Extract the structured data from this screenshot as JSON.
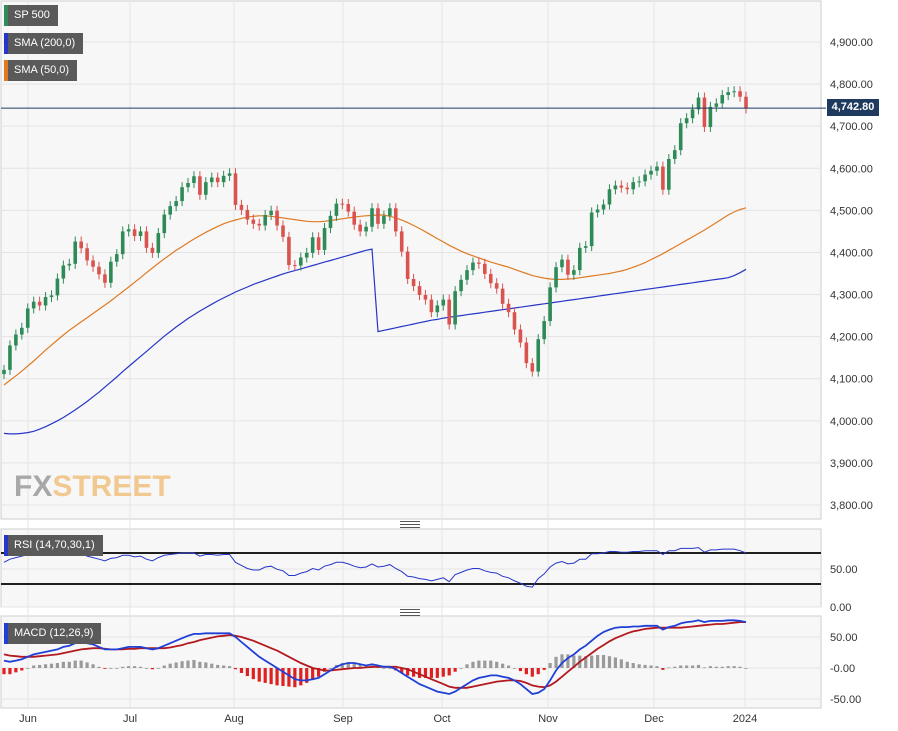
{
  "legend": {
    "sp500": "SP 500",
    "sma200": "SMA (200,0)",
    "sma50": "SMA (50,0)",
    "rsi": "RSI (14,70,30,1)",
    "macd": "MACD (12,26,9)"
  },
  "last_price_label": "4,742.80",
  "logo": {
    "part1": "FX",
    "part2": "STREET"
  },
  "colors": {
    "bull": "#2e8b57",
    "bear": "#d9534f",
    "sma200": "#2636c8",
    "sma50": "#e07a22",
    "rsi_line": "#2636c8",
    "macd_line": "#1f3fd6",
    "signal_line": "#b3191e",
    "hist_pos": "#9a9a9a",
    "hist_neg": "#e02020",
    "price_line": "#1f3a5f"
  },
  "chart_data": [
    {
      "type": "candlestick",
      "title": "SP 500",
      "x_ticks": [
        "Jun",
        "Jul",
        "Aug",
        "Sep",
        "Oct",
        "Nov",
        "Dec",
        "2024"
      ],
      "y_ticks": [
        "4,900.00",
        "4,800.00",
        "4,700.00",
        "4,600.00",
        "4,500.00",
        "4,400.00",
        "4,300.00",
        "4,200.00",
        "4,100.00",
        "4,000.00",
        "3,900.00",
        "3,800.00"
      ],
      "ylim": [
        3770,
        4960
      ],
      "last_price": 4742.8,
      "close": [
        4121,
        4179,
        4205,
        4221,
        4267,
        4283,
        4274,
        4294,
        4298,
        4338,
        4369,
        4373,
        4426,
        4410,
        4381,
        4366,
        4348,
        4328,
        4378,
        4396,
        4450,
        4455,
        4439,
        4450,
        4411,
        4399,
        4446,
        4490,
        4510,
        4522,
        4555,
        4565,
        4581,
        4537,
        4567,
        4578,
        4567,
        4582,
        4588,
        4513,
        4501,
        4478,
        4468,
        4464,
        4489,
        4499,
        4464,
        4437,
        4370,
        4369,
        4388,
        4399,
        4436,
        4406,
        4458,
        4487,
        4516,
        4515,
        4497,
        4466,
        4450,
        4461,
        4505,
        4468,
        4487,
        4505,
        4450,
        4402,
        4337,
        4320,
        4299,
        4288,
        4258,
        4274,
        4288,
        4229,
        4308,
        4335,
        4358,
        4376,
        4373,
        4349,
        4327,
        4314,
        4278,
        4258,
        4217,
        4186,
        4137,
        4117,
        4194,
        4237,
        4317,
        4365,
        4383,
        4347,
        4358,
        4411,
        4415,
        4495,
        4502,
        4514,
        4550,
        4559,
        4554,
        4550,
        4567,
        4569,
        4585,
        4594,
        4604,
        4549,
        4622,
        4643,
        4707,
        4719,
        4740,
        4768,
        4698,
        4746,
        4754,
        4774,
        4781,
        4783,
        4770,
        4742
      ],
      "sma200": [
        3970,
        3969,
        3969,
        3970,
        3972,
        3975,
        3980,
        3986,
        3993,
        4000,
        4008,
        4017,
        4026,
        4036,
        4046,
        4057,
        4068,
        4080,
        4092,
        4104,
        4117,
        4129,
        4141,
        4153,
        4165,
        4177,
        4189,
        4201,
        4212,
        4223,
        4233,
        4243,
        4252,
        4261,
        4269,
        4277,
        4285,
        4292,
        4299,
        4306,
        4312,
        4318,
        4324,
        4329,
        4334,
        4339,
        4344,
        4349,
        4353,
        4357,
        4361,
        4365,
        4369,
        4373,
        4377,
        4381,
        4385,
        4389,
        4393,
        4397,
        4401,
        4405,
        4408,
        4212,
        4215,
        4218,
        4221,
        4224,
        4227,
        4230,
        4233,
        4236,
        4239,
        4241,
        4244,
        4246,
        4248,
        4250,
        4252,
        4254,
        4256,
        4258,
        4260,
        4262,
        4264,
        4266,
        4268,
        4270,
        4272,
        4274,
        4276,
        4278,
        4280,
        4282,
        4284,
        4286,
        4288,
        4290,
        4292,
        4294,
        4296,
        4298,
        4300,
        4302,
        4304,
        4306,
        4308,
        4310,
        4312,
        4314,
        4316,
        4318,
        4320,
        4322,
        4324,
        4326,
        4328,
        4330,
        4332,
        4334,
        4336,
        4338,
        4340,
        4345,
        4352,
        4360
      ],
      "sma50": [
        4085,
        4096,
        4107,
        4118,
        4130,
        4142,
        4155,
        4168,
        4180,
        4192,
        4204,
        4215,
        4225,
        4235,
        4245,
        4255,
        4265,
        4275,
        4285,
        4296,
        4307,
        4318,
        4329,
        4340,
        4352,
        4363,
        4374,
        4385,
        4395,
        4405,
        4414,
        4423,
        4432,
        4440,
        4448,
        4455,
        4462,
        4468,
        4473,
        4477,
        4481,
        4484,
        4486,
        4487,
        4487,
        4486,
        4484,
        4482,
        4480,
        4478,
        4476,
        4474,
        4473,
        4473,
        4474,
        4476,
        4478,
        4480,
        4482,
        4484,
        4486,
        4487,
        4488,
        4489,
        4489,
        4486,
        4482,
        4477,
        4471,
        4464,
        4457,
        4449,
        4441,
        4433,
        4425,
        4417,
        4410,
        4403,
        4397,
        4392,
        4387,
        4382,
        4377,
        4373,
        4369,
        4365,
        4360,
        4355,
        4350,
        4345,
        4342,
        4339,
        4337,
        4336,
        4336,
        4337,
        4338,
        4340,
        4342,
        4344,
        4346,
        4348,
        4350,
        4353,
        4356,
        4360,
        4365,
        4370,
        4376,
        4383,
        4390,
        4397,
        4405,
        4413,
        4421,
        4429,
        4437,
        4445,
        4453,
        4462,
        4471,
        4480,
        4489,
        4496,
        4502,
        4506
      ]
    },
    {
      "type": "line",
      "title": "RSI (14,70,30,1)",
      "y_ticks": [
        "50.00",
        "0.00"
      ],
      "levels": [
        70,
        30
      ],
      "ylim": [
        0,
        100
      ],
      "values": [
        58,
        62,
        64,
        66,
        68,
        69,
        68,
        68,
        68,
        70,
        70,
        70,
        72,
        70,
        66,
        64,
        62,
        60,
        63,
        64,
        67,
        67,
        65,
        66,
        62,
        60,
        64,
        67,
        68,
        69,
        70,
        70,
        70,
        66,
        68,
        68,
        67,
        68,
        68,
        58,
        54,
        50,
        48,
        48,
        52,
        53,
        49,
        47,
        41,
        41,
        44,
        46,
        50,
        48,
        53,
        55,
        58,
        58,
        56,
        53,
        51,
        52,
        56,
        52,
        53,
        55,
        50,
        46,
        40,
        39,
        37,
        36,
        34,
        36,
        38,
        33,
        42,
        45,
        48,
        50,
        50,
        47,
        45,
        44,
        40,
        38,
        34,
        31,
        27,
        26,
        37,
        43,
        52,
        57,
        59,
        56,
        57,
        62,
        62,
        69,
        69,
        70,
        72,
        72,
        71,
        71,
        72,
        72,
        73,
        73,
        73,
        68,
        73,
        73,
        76,
        76,
        76,
        77,
        71,
        74,
        74,
        75,
        75,
        75,
        73,
        70
      ]
    },
    {
      "type": "line",
      "title": "MACD (12,26,9)",
      "y_ticks": [
        "50.00",
        "-0.00",
        "-50.00"
      ],
      "ylim": [
        -62,
        78
      ],
      "macd": [
        12,
        10,
        12,
        14,
        18,
        22,
        24,
        26,
        28,
        30,
        34,
        36,
        40,
        42,
        40,
        38,
        34,
        30,
        30,
        30,
        32,
        34,
        34,
        34,
        32,
        30,
        32,
        36,
        40,
        44,
        48,
        52,
        55,
        55,
        56,
        56,
        56,
        56,
        56,
        50,
        42,
        34,
        26,
        18,
        12,
        6,
        0,
        -6,
        -12,
        -18,
        -20,
        -20,
        -18,
        -16,
        -10,
        -4,
        2,
        6,
        8,
        8,
        6,
        4,
        6,
        4,
        2,
        2,
        -2,
        -8,
        -14,
        -20,
        -26,
        -30,
        -34,
        -38,
        -40,
        -42,
        -38,
        -32,
        -26,
        -20,
        -16,
        -14,
        -12,
        -12,
        -14,
        -16,
        -20,
        -26,
        -34,
        -42,
        -40,
        -34,
        -20,
        -4,
        8,
        16,
        22,
        30,
        36,
        44,
        52,
        58,
        62,
        65,
        66,
        66,
        67,
        67,
        68,
        68,
        68,
        62,
        66,
        68,
        72,
        74,
        75,
        77,
        74,
        76,
        76,
        76,
        77,
        77,
        76,
        74
      ],
      "signal": [
        22,
        20,
        19,
        18,
        18,
        18,
        19,
        20,
        21,
        22,
        24,
        26,
        28,
        30,
        31,
        32,
        32,
        31,
        30,
        30,
        30,
        31,
        31,
        32,
        32,
        32,
        32,
        32,
        33,
        35,
        37,
        40,
        42,
        45,
        47,
        49,
        51,
        52,
        53,
        52,
        50,
        47,
        44,
        40,
        36,
        32,
        28,
        23,
        18,
        13,
        8,
        4,
        0,
        -2,
        -4,
        -4,
        -3,
        -2,
        -1,
        0,
        0,
        1,
        2,
        2,
        2,
        2,
        2,
        0,
        -2,
        -6,
        -10,
        -14,
        -18,
        -22,
        -26,
        -30,
        -32,
        -32,
        -32,
        -30,
        -28,
        -26,
        -24,
        -22,
        -21,
        -20,
        -20,
        -21,
        -24,
        -28,
        -30,
        -31,
        -28,
        -22,
        -14,
        -6,
        2,
        10,
        17,
        24,
        31,
        37,
        43,
        48,
        52,
        56,
        59,
        61,
        63,
        64,
        65,
        65,
        65,
        65,
        65,
        66,
        67,
        68,
        69,
        70,
        71,
        71,
        72,
        73,
        74,
        74
      ],
      "histogram": [
        -10,
        -10,
        -7,
        -4,
        0,
        4,
        5,
        6,
        7,
        8,
        10,
        10,
        12,
        12,
        9,
        6,
        2,
        -1,
        0,
        0,
        2,
        3,
        3,
        2,
        0,
        -2,
        0,
        4,
        7,
        9,
        11,
        12,
        13,
        10,
        9,
        7,
        5,
        4,
        3,
        -2,
        -8,
        -13,
        -18,
        -22,
        -24,
        -26,
        -28,
        -29,
        -30,
        -31,
        -28,
        -24,
        -18,
        -14,
        -6,
        0,
        5,
        8,
        9,
        8,
        6,
        3,
        4,
        2,
        0,
        0,
        -4,
        -8,
        -12,
        -14,
        -16,
        -16,
        -16,
        -16,
        -14,
        -12,
        -6,
        0,
        6,
        10,
        12,
        12,
        12,
        10,
        7,
        4,
        0,
        -5,
        -10,
        -14,
        -10,
        -3,
        8,
        18,
        22,
        22,
        20,
        20,
        19,
        20,
        21,
        21,
        19,
        17,
        14,
        10,
        8,
        6,
        5,
        4,
        3,
        -3,
        1,
        2,
        4,
        4,
        4,
        5,
        1,
        3,
        2,
        2,
        3,
        3,
        2,
        0
      ]
    }
  ]
}
